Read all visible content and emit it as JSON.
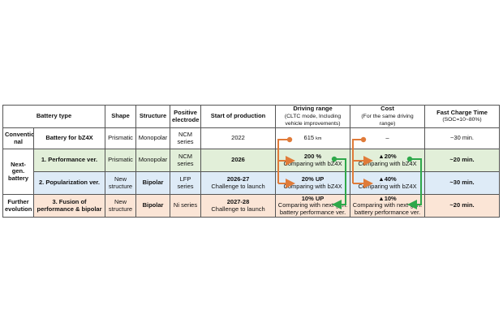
{
  "table": {
    "headers": {
      "battery_type": "Battery type",
      "shape": "Shape",
      "structure": "Structure",
      "positive_electrode_1": "Positive",
      "positive_electrode_2": "electrode",
      "start_of_production": "Start of production",
      "driving_range": "Driving range",
      "driving_range_sub_1": "(CLTC mode, Including",
      "driving_range_sub_2": "vehicle improvements)",
      "cost": "Cost",
      "cost_sub_1": "(For the same driving",
      "cost_sub_2": "range)",
      "fast_charge": "Fast Charge Time",
      "fast_charge_sub": "(SOC=10~80%)"
    },
    "groups": {
      "conventional_1": "Conventio",
      "conventional_2": "nal",
      "nextgen_1": "Next-gen.",
      "nextgen_2": "battery",
      "further_1": "Further",
      "further_2": "evolution"
    },
    "rows": [
      {
        "type": "Battery for bZ4X",
        "shape": "Prismatic",
        "structure": "Monopolar",
        "electrode": "NCM series",
        "start": "2022",
        "start_sub": "",
        "range_value": "615",
        "range_unit": "km",
        "range_sub": "",
        "cost_value": "–",
        "cost_sub": "",
        "charge": "~30 min."
      },
      {
        "type": "1. Performance ver.",
        "shape": "Prismatic",
        "structure": "Monopolar",
        "electrode": "NCM series",
        "start": "2026",
        "start_sub": "",
        "range_value": "200 %",
        "range_sub": "Comparing with bZ4X",
        "cost_value": "▲20%",
        "cost_sub": "Comparing with bZ4X",
        "charge": "~20 min."
      },
      {
        "type": "2. Popularization ver.",
        "shape_1": "New",
        "shape_2": "structure",
        "structure": "Bipolar",
        "electrode": "LFP series",
        "start": "2026-27",
        "start_sub": "Challenge to launch",
        "range_value": "20%  UP",
        "range_sub": "Comparing with bZ4X",
        "cost_value": "▲40%",
        "cost_sub": "Comparing with bZ4X",
        "charge": "~30 min."
      },
      {
        "type_1": "3. Fusion of",
        "type_2": "performance & bipolar",
        "shape_1": "New",
        "shape_2": "structure",
        "structure": "Bipolar",
        "electrode": "Ni series",
        "start": "2027-28",
        "start_sub": "Challenge to launch",
        "range_value": "10%  UP",
        "range_sub_1": "Comparing with next-gen.",
        "range_sub_2": "battery performance ver.",
        "cost_value": "▲10%",
        "cost_sub_1": "Comparing with next-gen.",
        "cost_sub_2": "battery performance ver.",
        "charge": "~20 min."
      }
    ],
    "colors": {
      "performance": "#e2efd9",
      "popularization": "#deebf7",
      "fusion": "#fbe5d6",
      "arrow_orange": "#e07b39",
      "arrow_green": "#2ea84a"
    }
  }
}
